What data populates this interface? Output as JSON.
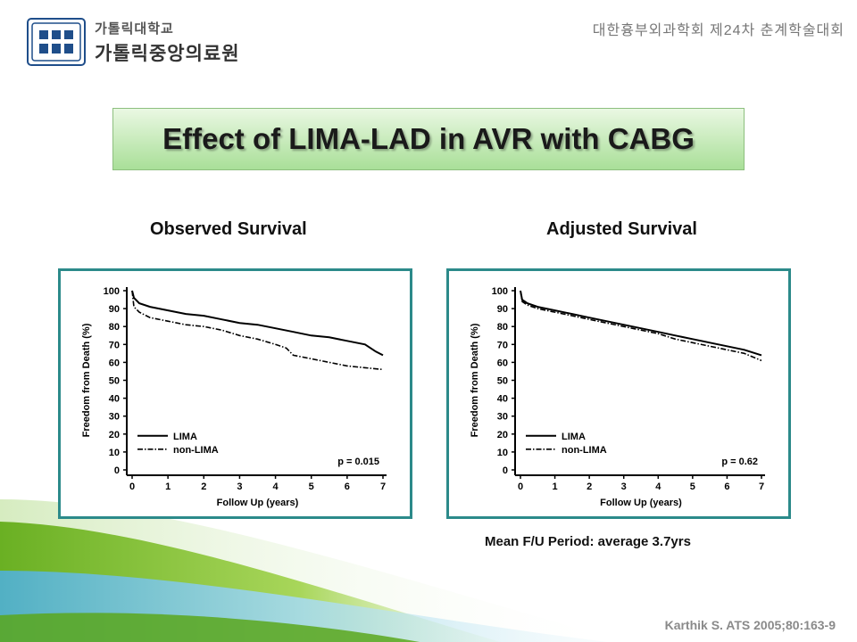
{
  "header": {
    "logo_line1": "가톨릭대학교",
    "logo_line2": "가톨릭중앙의료원",
    "conference": "대한흉부외과학회 제24차 춘계학술대회"
  },
  "title": "Effect of LIMA-LAD in AVR with CABG",
  "panels": {
    "left_heading": "Observed Survival",
    "right_heading": "Adjusted Survival"
  },
  "footer": {
    "mean_fu": "Mean F/U Period: average 3.7yrs",
    "citation": "Karthik S. ATS 2005;80:163-9"
  },
  "colors": {
    "panel_border": "#2c8a8a",
    "title_gradient_top": "#eaf8e3",
    "title_gradient_bottom": "#a9df98",
    "wave_green": "#8cc63f",
    "wave_blue": "#7fc6e0"
  },
  "chart_data": [
    {
      "type": "line",
      "xlabel": "Follow Up (years)",
      "ylabel": "Freedom from Death (%)",
      "xlim": [
        0,
        7
      ],
      "ylim": [
        0,
        100
      ],
      "xticks": [
        0,
        1,
        2,
        3,
        4,
        5,
        6,
        7
      ],
      "yticks": [
        0,
        10,
        20,
        30,
        40,
        50,
        60,
        70,
        80,
        90,
        100
      ],
      "legend_position": "bottom-left",
      "annotation": "p = 0.015",
      "series": [
        {
          "name": "LIMA",
          "style": "solid",
          "x": [
            0,
            0.05,
            0.2,
            0.5,
            1,
            1.5,
            2,
            2.5,
            3,
            3.5,
            4,
            4.5,
            5,
            5.5,
            6,
            6.5,
            6.8,
            7
          ],
          "y": [
            100,
            96,
            93,
            91,
            89,
            87,
            86,
            84,
            82,
            81,
            79,
            77,
            75,
            74,
            72,
            70,
            66,
            64
          ]
        },
        {
          "name": "non-LIMA",
          "style": "dashdot",
          "x": [
            0,
            0.05,
            0.2,
            0.5,
            1,
            1.5,
            2,
            2.5,
            3,
            3.5,
            4,
            4.3,
            4.5,
            5,
            5.5,
            6,
            6.5,
            7
          ],
          "y": [
            100,
            91,
            88,
            85,
            83,
            81,
            80,
            78,
            75,
            73,
            70,
            68,
            64,
            62,
            60,
            58,
            57,
            56
          ]
        }
      ]
    },
    {
      "type": "line",
      "xlabel": "Follow Up (years)",
      "ylabel": "Freedom from Death (%)",
      "xlim": [
        0,
        7
      ],
      "ylim": [
        0,
        100
      ],
      "xticks": [
        0,
        1,
        2,
        3,
        4,
        5,
        6,
        7
      ],
      "yticks": [
        0,
        10,
        20,
        30,
        40,
        50,
        60,
        70,
        80,
        90,
        100
      ],
      "legend_position": "bottom-left",
      "annotation": "p = 0.62",
      "series": [
        {
          "name": "LIMA",
          "style": "solid",
          "x": [
            0,
            0.05,
            0.2,
            0.5,
            1,
            1.5,
            2,
            2.5,
            3,
            3.5,
            4,
            4.5,
            5,
            5.5,
            6,
            6.5,
            7
          ],
          "y": [
            100,
            95,
            93,
            91,
            89,
            87,
            85,
            83,
            81,
            79,
            77,
            75,
            73,
            71,
            69,
            67,
            64
          ]
        },
        {
          "name": "non-LIMA",
          "style": "dashdot",
          "x": [
            0,
            0.05,
            0.2,
            0.5,
            1,
            1.5,
            2,
            2.5,
            3,
            3.5,
            4,
            4.5,
            5,
            5.5,
            6,
            6.5,
            7
          ],
          "y": [
            100,
            94,
            92,
            90,
            88,
            86,
            84,
            82,
            80,
            78,
            76,
            73,
            71,
            69,
            67,
            65,
            61
          ]
        }
      ]
    }
  ]
}
